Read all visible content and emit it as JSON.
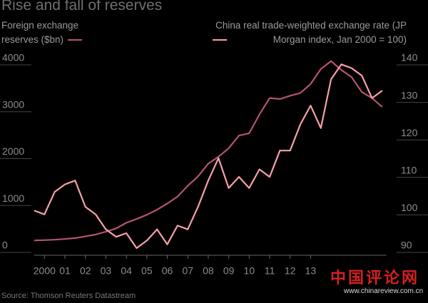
{
  "title": "Rise and fall of reserves",
  "source": "Source: Thomson Reuters Datastream",
  "watermark": {
    "cn": "中国评论网",
    "url": "www.chinareview.com.cn"
  },
  "chart_data": {
    "type": "line",
    "x": [
      2000,
      2000.5,
      2001,
      2001.5,
      2002,
      2002.5,
      2003,
      2003.5,
      2004,
      2004.5,
      2005,
      2005.5,
      2006,
      2006.5,
      2007,
      2007.5,
      2008,
      2008.5,
      2009,
      2009.5,
      2010,
      2010.5,
      2011,
      2011.5,
      2012,
      2012.5,
      2013,
      2013.5,
      2014,
      2014.5,
      2015,
      2015.5,
      2016,
      2016.5,
      2017
    ],
    "series": [
      {
        "name": "Foreign exchange reserves ($bn)",
        "color": "#b5546e",
        "values": [
          165,
          170,
          180,
          195,
          215,
          250,
          290,
          350,
          420,
          540,
          620,
          710,
          820,
          950,
          1100,
          1330,
          1530,
          1800,
          1950,
          2130,
          2400,
          2450,
          2850,
          3200,
          3180,
          3250,
          3310,
          3500,
          3820,
          3990,
          3800,
          3650,
          3330,
          3200,
          3010
        ]
      },
      {
        "name": "China real trade-weighted exchange rate (JP Morgan index, Jan 2000 = 100)",
        "color": "#f7a1a8",
        "axis": "y2",
        "values": [
          100,
          99,
          105,
          107,
          108,
          101,
          99,
          95,
          93,
          94,
          90,
          92,
          95,
          91,
          96,
          95,
          101,
          108,
          114,
          106,
          109,
          106,
          111,
          109,
          116,
          116,
          123,
          128,
          122,
          135,
          139,
          138,
          136,
          130,
          132
        ]
      }
    ],
    "xlim": [
      2000,
      2017.2
    ],
    "xticks": [
      {
        "value": 2000.5,
        "label": "2000"
      },
      {
        "value": 2001.5,
        "label": "01"
      },
      {
        "value": 2002.5,
        "label": "02"
      },
      {
        "value": 2003.5,
        "label": "03"
      },
      {
        "value": 2004.5,
        "label": "04"
      },
      {
        "value": 2005.5,
        "label": "05"
      },
      {
        "value": 2006.5,
        "label": "06"
      },
      {
        "value": 2007.5,
        "label": "07"
      },
      {
        "value": 2008.5,
        "label": "08"
      },
      {
        "value": 2009.5,
        "label": "09"
      },
      {
        "value": 2010.5,
        "label": "10"
      },
      {
        "value": 2011.5,
        "label": "11"
      },
      {
        "value": 2012.5,
        "label": "12"
      },
      {
        "value": 2013.5,
        "label": "13"
      }
    ],
    "ylim": [
      0,
      4000
    ],
    "yticks": [
      0,
      1000,
      2000,
      3000,
      4000
    ],
    "y2lim": [
      90,
      140
    ],
    "y2ticks": [
      90,
      100,
      110,
      120,
      130,
      140
    ]
  }
}
